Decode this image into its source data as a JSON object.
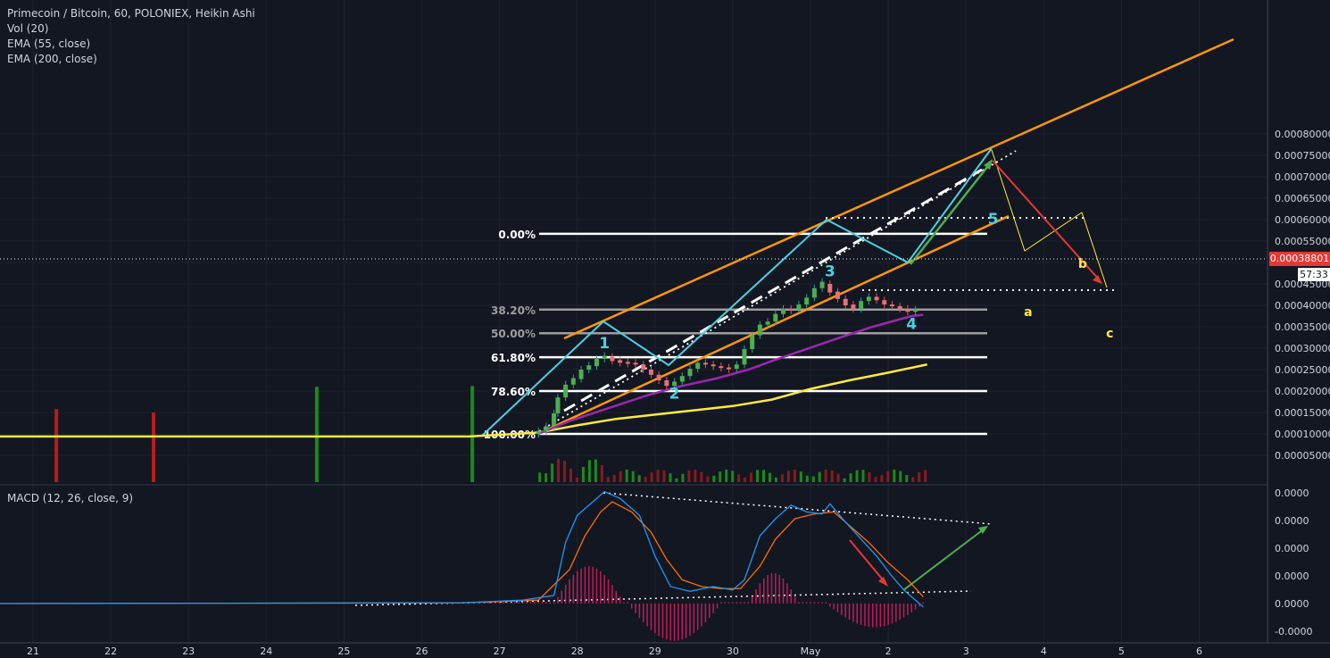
{
  "header": {
    "symbol_line": "Primecoin / Bitcoin, 60, POLONIEX, Heikin Ashi",
    "indicators": [
      "Vol (20)",
      "EMA (55, close)",
      "EMA (200, close)"
    ],
    "macd_label": "MACD (12, 26, close, 9)"
  },
  "price_tag": "0.00038801",
  "countdown": "57:33",
  "chart_data": {
    "type": "line",
    "price_axis": {
      "min": 5e-05,
      "max": 0.0008,
      "ticks": [
        "0.00005000",
        "0.00010000",
        "0.00015000",
        "0.00020000",
        "0.00025000",
        "0.00030000",
        "0.00035000",
        "0.00040000",
        "0.00045000",
        "0.00050000",
        "0.00055000",
        "0.00060000",
        "0.00065000",
        "0.00070000",
        "0.00075000",
        "0.00080000"
      ]
    },
    "macd_axis": {
      "ticks": [
        "0.0000",
        "0.0000",
        "0.0000",
        "0.0000",
        "0.0000",
        "-0.0000"
      ]
    },
    "x_ticks": [
      "21",
      "22",
      "23",
      "24",
      "25",
      "26",
      "27",
      "28",
      "29",
      "30",
      "May",
      "2",
      "3",
      "4",
      "5",
      "6"
    ],
    "x_range": [
      20.55,
      37.0
    ],
    "fib_levels": [
      {
        "label": "0.00%",
        "price": 0.000567
      },
      {
        "label": "38.20%",
        "price": 0.00039
      },
      {
        "label": "50.00%",
        "price": 0.000335
      },
      {
        "label": "61.80%",
        "price": 0.000279
      },
      {
        "label": "78.60%",
        "price": 0.0002
      },
      {
        "label": "100.00%",
        "price": 0.0001
      }
    ],
    "wave_labels": [
      {
        "text": "1",
        "x": 28.35,
        "y": 0.0003,
        "color": "#4dd0e1"
      },
      {
        "text": "2",
        "x": 29.25,
        "y": 0.000182,
        "color": "#4dd0e1"
      },
      {
        "text": "3",
        "x": 31.25,
        "y": 0.000468,
        "color": "#4dd0e1"
      },
      {
        "text": "4",
        "x": 32.3,
        "y": 0.000345,
        "color": "#4dd0e1"
      },
      {
        "text": "5",
        "x": 33.35,
        "y": 0.00059,
        "color": "#4dd0e1"
      },
      {
        "text": "a",
        "x": 33.8,
        "y": 0.000375,
        "color": "#ffeb3b"
      },
      {
        "text": "b",
        "x": 34.5,
        "y": 0.000487,
        "color": "#ffeb3b"
      },
      {
        "text": "c",
        "x": 34.85,
        "y": 0.000325,
        "color": "#ffeb3b"
      }
    ],
    "ema55": [
      [
        27.5,
        0.0001
      ],
      [
        27.9,
        0.00013
      ],
      [
        28.4,
        0.00016
      ],
      [
        28.9,
        0.00019
      ],
      [
        29.3,
        0.00021
      ],
      [
        29.8,
        0.00023
      ],
      [
        30.2,
        0.00025
      ],
      [
        30.5,
        0.00027
      ],
      [
        30.9,
        0.000295
      ],
      [
        31.3,
        0.00032
      ],
      [
        31.8,
        0.00035
      ],
      [
        32.3,
        0.000375
      ],
      [
        32.45,
        0.000378
      ]
    ],
    "ema200": [
      [
        20.55,
        9.4e-05
      ],
      [
        26.6,
        9.4e-05
      ],
      [
        27.0,
        9.8e-05
      ],
      [
        27.5,
        0.000103
      ],
      [
        28.0,
        0.00012
      ],
      [
        28.5,
        0.000135
      ],
      [
        29.0,
        0.000145
      ],
      [
        29.5,
        0.000155
      ],
      [
        30.0,
        0.000165
      ],
      [
        30.5,
        0.00018
      ],
      [
        31.0,
        0.000205
      ],
      [
        31.5,
        0.000225
      ],
      [
        32.0,
        0.000243
      ],
      [
        32.5,
        0.000262
      ]
    ],
    "candles": [
      [
        27.5,
        0.0001,
        0.000107
      ],
      [
        27.6,
        0.000107,
        0.000118
      ],
      [
        27.7,
        0.000118,
        0.000148
      ],
      [
        27.75,
        0.000148,
        0.000185
      ],
      [
        27.85,
        0.000185,
        0.000215
      ],
      [
        27.95,
        0.000215,
        0.00023
      ],
      [
        28.05,
        0.000228,
        0.00025
      ],
      [
        28.15,
        0.00025,
        0.00026
      ],
      [
        28.25,
        0.000258,
        0.000275
      ],
      [
        28.35,
        0.000275,
        0.000282
      ],
      [
        28.45,
        0.00028,
        0.00027
      ],
      [
        28.55,
        0.000272,
        0.000266
      ],
      [
        28.65,
        0.000268,
        0.000264
      ],
      [
        28.75,
        0.000266,
        0.000262
      ],
      [
        28.85,
        0.000262,
        0.00025
      ],
      [
        28.95,
        0.00025,
        0.000238
      ],
      [
        29.05,
        0.000238,
        0.000225
      ],
      [
        29.15,
        0.000225,
        0.000212
      ],
      [
        29.25,
        0.000212,
        0.000222
      ],
      [
        29.35,
        0.000222,
        0.000235
      ],
      [
        29.45,
        0.000235,
        0.000252
      ],
      [
        29.55,
        0.000252,
        0.000266
      ],
      [
        29.65,
        0.000266,
        0.000262
      ],
      [
        29.75,
        0.000262,
        0.000258
      ],
      [
        29.85,
        0.000258,
        0.000255
      ],
      [
        29.95,
        0.000255,
        0.000252
      ],
      [
        30.05,
        0.000252,
        0.000262
      ],
      [
        30.15,
        0.000262,
        0.000298
      ],
      [
        30.25,
        0.000298,
        0.00033
      ],
      [
        30.35,
        0.00033,
        0.000355
      ],
      [
        30.45,
        0.000355,
        0.000362
      ],
      [
        30.55,
        0.000362,
        0.00038
      ],
      [
        30.65,
        0.00038,
        0.000392
      ],
      [
        30.75,
        0.000392,
        0.00039
      ],
      [
        30.85,
        0.00039,
        0.000402
      ],
      [
        30.95,
        0.000402,
        0.000418
      ],
      [
        31.05,
        0.000418,
        0.00044
      ],
      [
        31.15,
        0.00044,
        0.000455
      ],
      [
        31.25,
        0.00045,
        0.00043
      ],
      [
        31.35,
        0.000432,
        0.000415
      ],
      [
        31.45,
        0.000415,
        0.0004
      ],
      [
        31.55,
        0.000402,
        0.000392
      ],
      [
        31.65,
        0.000392,
        0.00041
      ],
      [
        31.75,
        0.00041,
        0.00042
      ],
      [
        31.85,
        0.00042,
        0.000412
      ],
      [
        31.95,
        0.000412,
        0.000402
      ],
      [
        32.05,
        0.000402,
        0.000398
      ],
      [
        32.15,
        0.000398,
        0.000392
      ],
      [
        32.25,
        0.000392,
        0.000385
      ],
      [
        32.35,
        0.000385,
        0.00039
      ]
    ],
    "volume_spikes": [
      {
        "x": 21.3,
        "v": 0.000158,
        "color": "#b71c1c"
      },
      {
        "x": 22.55,
        "v": 0.00015,
        "color": "#b71c1c"
      },
      {
        "x": 24.65,
        "v": 0.00021,
        "color": "#1b8a1b"
      },
      {
        "x": 26.65,
        "v": 0.000212,
        "color": "#1b8a1b"
      }
    ],
    "macd_line": [
      [
        20.55,
        0
      ],
      [
        26.5,
        0.01
      ],
      [
        27.3,
        0.05
      ],
      [
        27.7,
        0.12
      ],
      [
        27.85,
        0.9
      ],
      [
        28.0,
        1.3
      ],
      [
        28.25,
        1.55
      ],
      [
        28.35,
        1.65
      ],
      [
        28.55,
        1.55
      ],
      [
        28.8,
        1.3
      ],
      [
        29.0,
        0.7
      ],
      [
        29.2,
        0.25
      ],
      [
        29.45,
        0.18
      ],
      [
        29.75,
        0.25
      ],
      [
        30.0,
        0.2
      ],
      [
        30.15,
        0.35
      ],
      [
        30.35,
        1.0
      ],
      [
        30.55,
        1.25
      ],
      [
        30.75,
        1.45
      ],
      [
        30.95,
        1.35
      ],
      [
        31.15,
        1.32
      ],
      [
        31.25,
        1.47
      ],
      [
        31.45,
        1.2
      ],
      [
        31.65,
        0.95
      ],
      [
        31.85,
        0.7
      ],
      [
        32.05,
        0.4
      ],
      [
        32.2,
        0.2
      ],
      [
        32.45,
        -0.05
      ]
    ],
    "signal_line": [
      [
        20.55,
        0
      ],
      [
        26.5,
        0.01
      ],
      [
        27.5,
        0.05
      ],
      [
        27.9,
        0.5
      ],
      [
        28.1,
        1.0
      ],
      [
        28.3,
        1.35
      ],
      [
        28.45,
        1.5
      ],
      [
        28.7,
        1.35
      ],
      [
        28.95,
        1.05
      ],
      [
        29.15,
        0.65
      ],
      [
        29.35,
        0.35
      ],
      [
        29.6,
        0.25
      ],
      [
        29.85,
        0.22
      ],
      [
        30.1,
        0.22
      ],
      [
        30.35,
        0.55
      ],
      [
        30.55,
        0.95
      ],
      [
        30.8,
        1.25
      ],
      [
        31.05,
        1.32
      ],
      [
        31.3,
        1.35
      ],
      [
        31.5,
        1.15
      ],
      [
        31.75,
        0.9
      ],
      [
        32.0,
        0.6
      ],
      [
        32.25,
        0.35
      ],
      [
        32.45,
        0.1
      ]
    ]
  }
}
